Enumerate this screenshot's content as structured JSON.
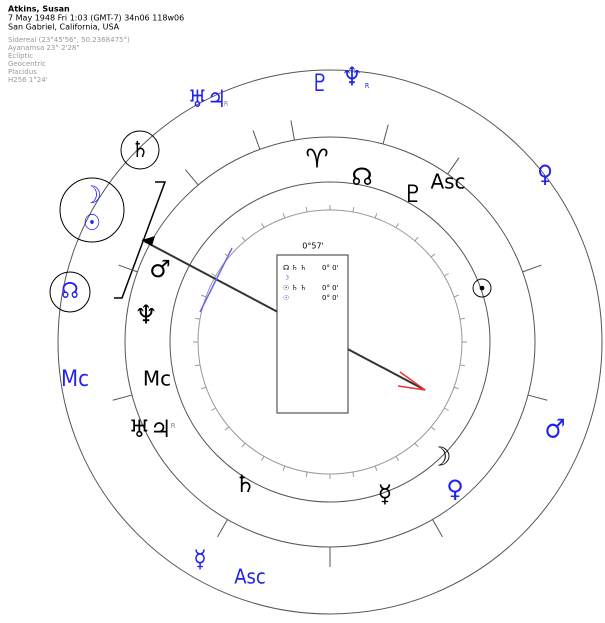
{
  "header": {
    "name": "Atkins, Susan",
    "line1": "7 May 1948  Fri   1:03 (GMT-7) 34n06  118w06",
    "line2": "San Gabriel, California, USA"
  },
  "settings": [
    "Sidereal (23°45'56\", 50.2368475°)",
    "Ayanamsa 23° 2'28\"",
    "Ecliptic",
    "Geocentric",
    "Placidus",
    "H256  1°24'"
  ],
  "outer_glyphs": [
    "♇",
    "♆",
    "R",
    "♅♃",
    "R",
    "♄",
    "☽",
    "☉",
    "☊",
    "Mc",
    "♂",
    "♀",
    "Asc",
    "☿"
  ],
  "inner_glyphs": [
    "♈",
    "☊",
    "♇",
    "Asc",
    "☉",
    "☽",
    "♀",
    "☿",
    "♄",
    "♅♃",
    "R",
    "Mc",
    "♆",
    "♂"
  ],
  "center": {
    "label": "0°57'",
    "rows": [
      [
        "☊ ♄ ♄",
        "0° 0'"
      ],
      [
        "☽",
        ""
      ],
      [
        "☉ ♄ ♄",
        "0° 0'"
      ],
      [
        "☉",
        "0° 0'"
      ]
    ]
  }
}
